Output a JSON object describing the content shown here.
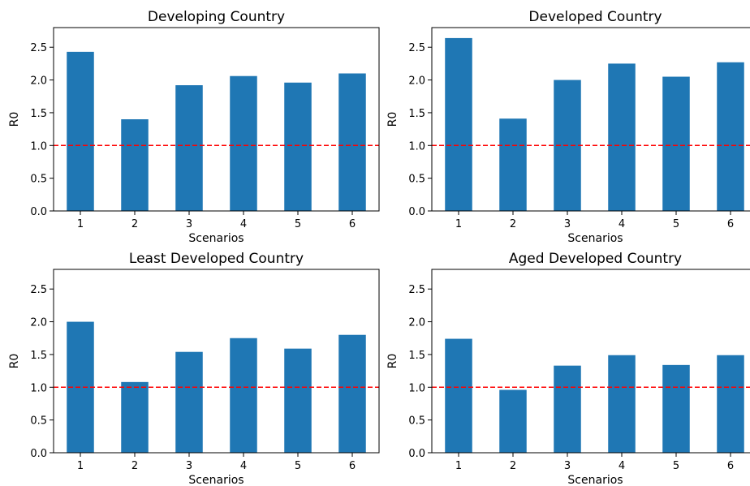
{
  "chart_data": [
    {
      "type": "bar",
      "title": "Developing Country",
      "xlabel": "Scenarios",
      "ylabel": "R0",
      "categories": [
        "1",
        "2",
        "3",
        "4",
        "5",
        "6"
      ],
      "values": [
        2.43,
        1.4,
        1.92,
        2.06,
        1.96,
        2.1
      ],
      "ylim": [
        0,
        2.8
      ],
      "yticks": [
        "0.0",
        "0.5",
        "1.0",
        "1.5",
        "2.0",
        "2.5"
      ],
      "reference_line": {
        "y": 1.0,
        "style": "dashed",
        "color": "#ff0000"
      },
      "bar_color": "#1f77b4",
      "grid": false,
      "legend": "none"
    },
    {
      "type": "bar",
      "title": "Developed Country",
      "xlabel": "Scenarios",
      "ylabel": "R0",
      "categories": [
        "1",
        "2",
        "3",
        "4",
        "5",
        "6"
      ],
      "values": [
        2.64,
        1.41,
        2.0,
        2.25,
        2.05,
        2.27
      ],
      "ylim": [
        0,
        2.8
      ],
      "yticks": [
        "0.0",
        "0.5",
        "1.0",
        "1.5",
        "2.0",
        "2.5"
      ],
      "reference_line": {
        "y": 1.0,
        "style": "dashed",
        "color": "#ff0000"
      },
      "bar_color": "#1f77b4",
      "grid": false,
      "legend": "none"
    },
    {
      "type": "bar",
      "title": "Least Developed Country",
      "xlabel": "Scenarios",
      "ylabel": "R0",
      "categories": [
        "1",
        "2",
        "3",
        "4",
        "5",
        "6"
      ],
      "values": [
        2.0,
        1.08,
        1.54,
        1.75,
        1.59,
        1.8
      ],
      "ylim": [
        0,
        2.8
      ],
      "yticks": [
        "0.0",
        "0.5",
        "1.0",
        "1.5",
        "2.0",
        "2.5"
      ],
      "reference_line": {
        "y": 1.0,
        "style": "dashed",
        "color": "#ff0000"
      },
      "bar_color": "#1f77b4",
      "grid": false,
      "legend": "none"
    },
    {
      "type": "bar",
      "title": "Aged Developed Country",
      "xlabel": "Scenarios",
      "ylabel": "R0",
      "categories": [
        "1",
        "2",
        "3",
        "4",
        "5",
        "6"
      ],
      "values": [
        1.74,
        0.96,
        1.33,
        1.49,
        1.34,
        1.49
      ],
      "ylim": [
        0,
        2.8
      ],
      "yticks": [
        "0.0",
        "0.5",
        "1.0",
        "1.5",
        "2.0",
        "2.5"
      ],
      "reference_line": {
        "y": 1.0,
        "style": "dashed",
        "color": "#ff0000"
      },
      "bar_color": "#1f77b4",
      "grid": false,
      "legend": "none"
    }
  ]
}
